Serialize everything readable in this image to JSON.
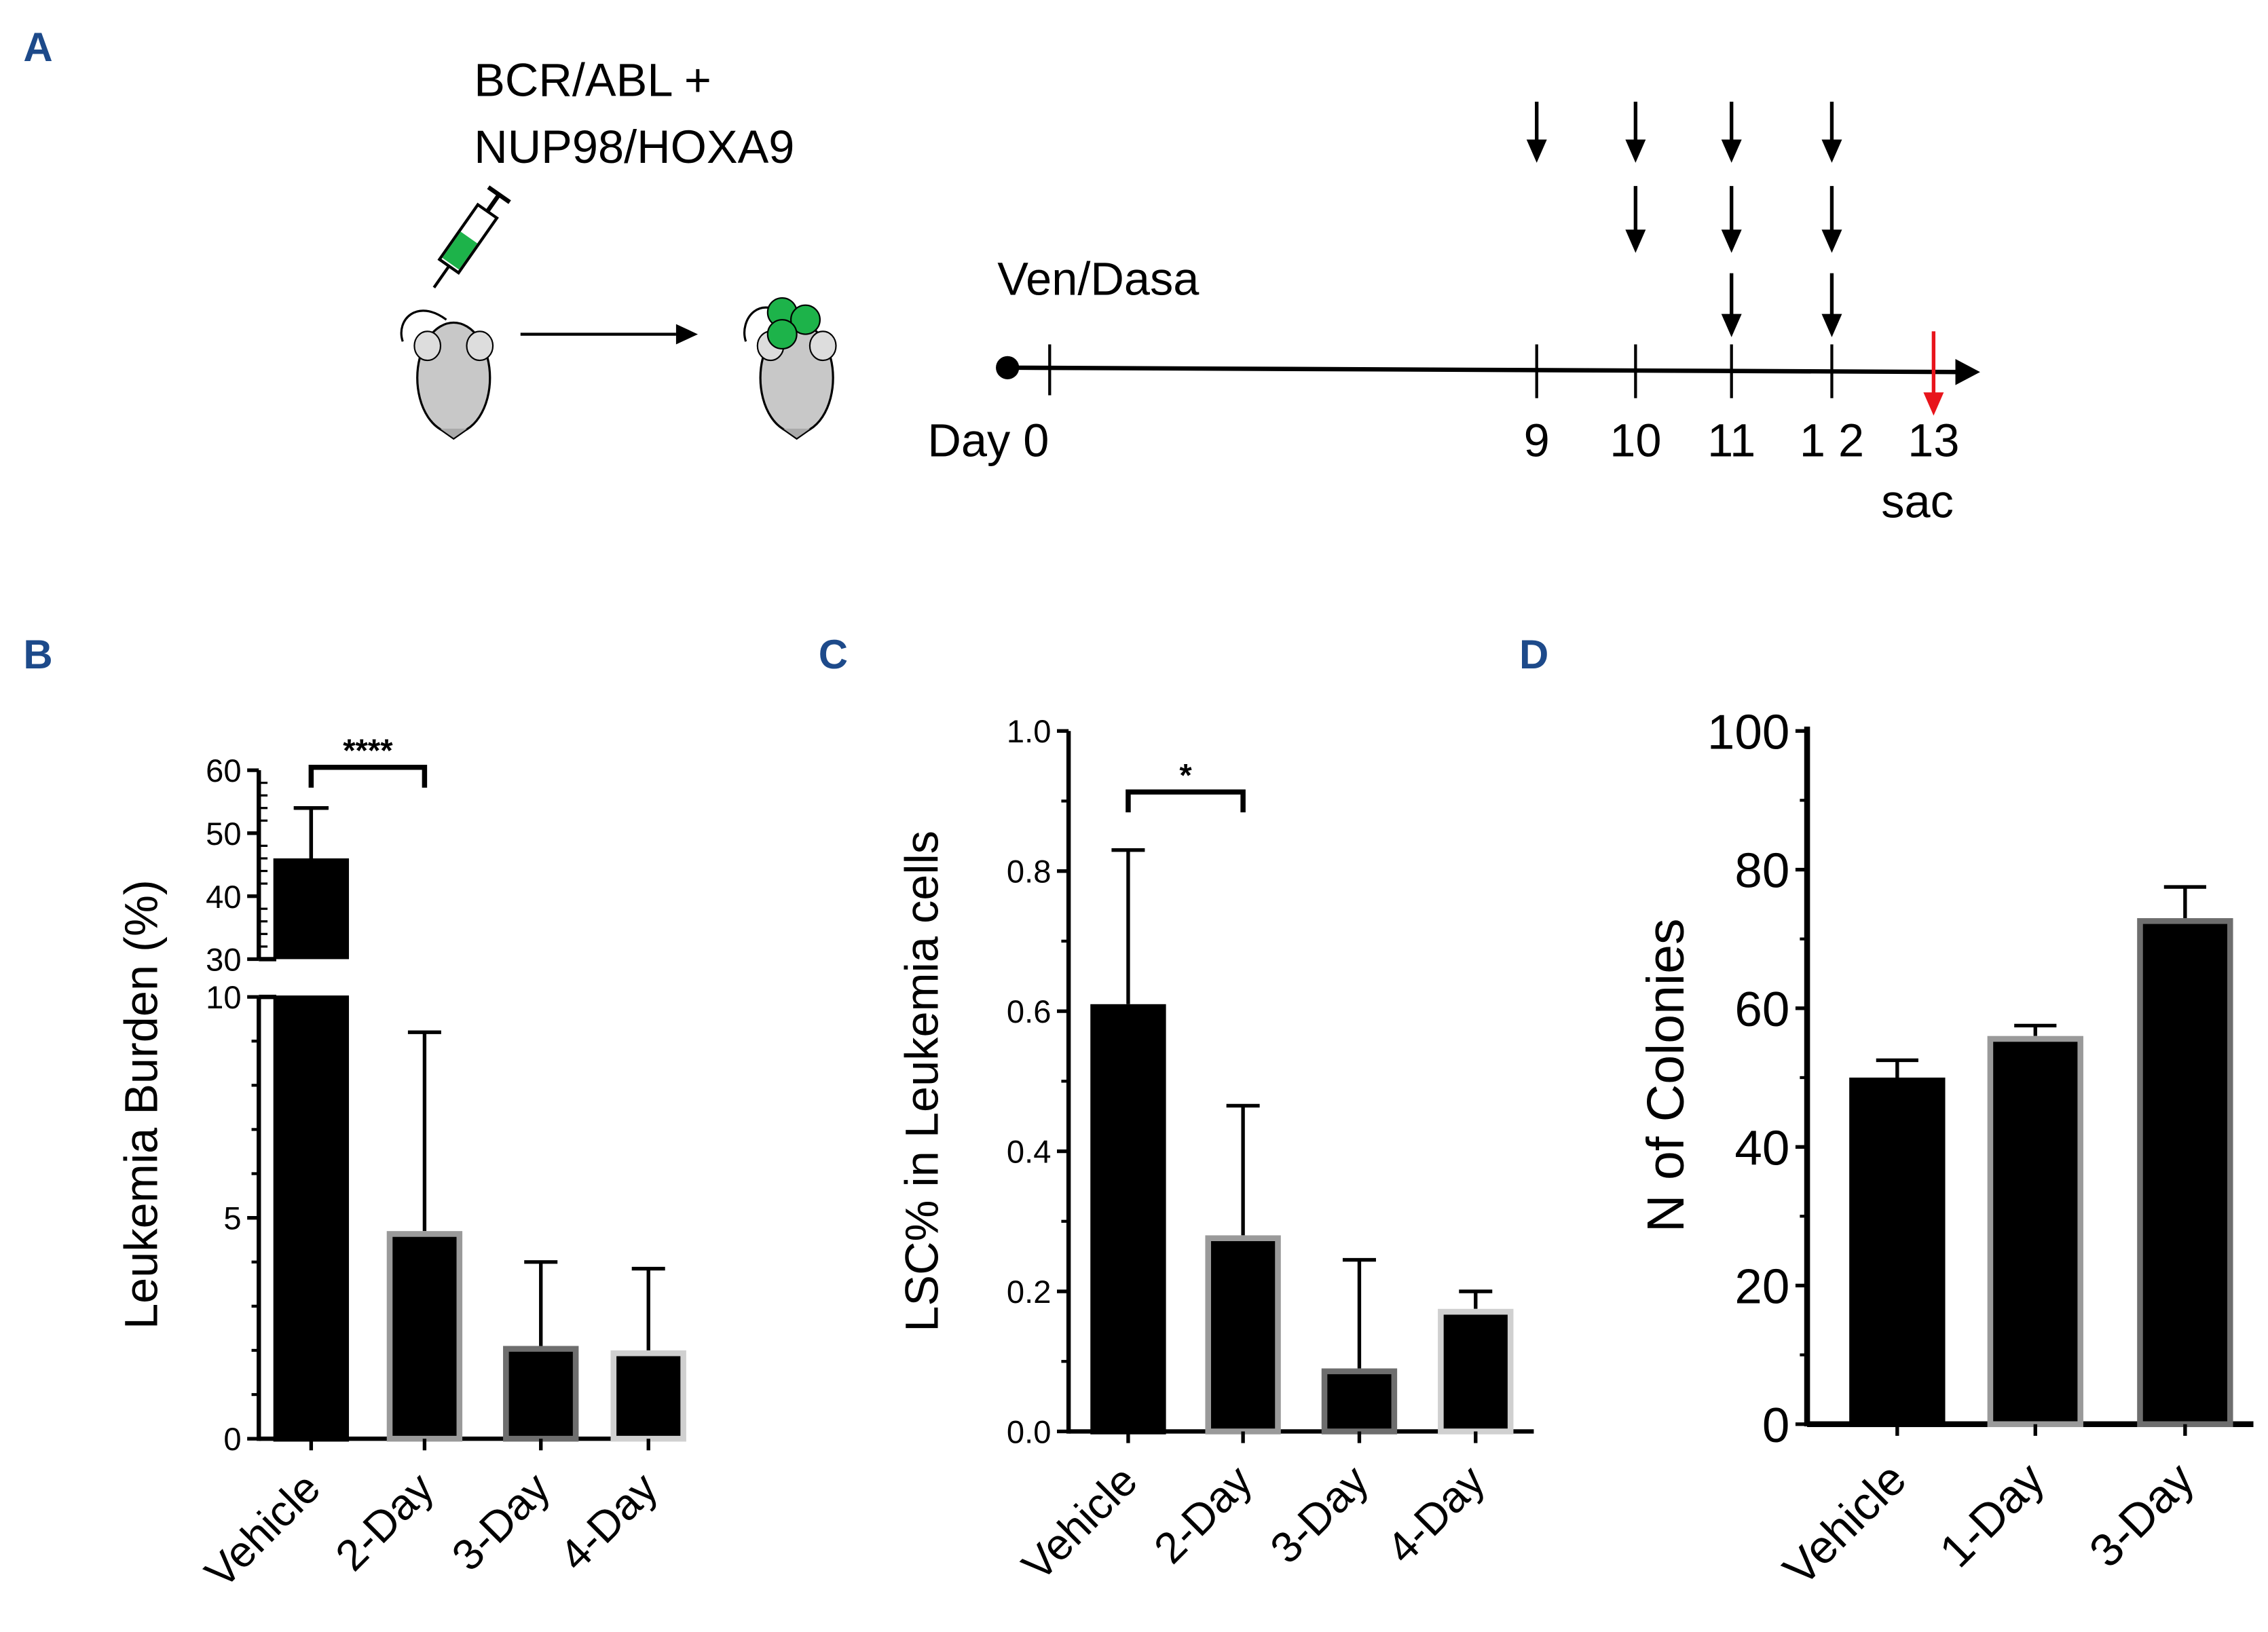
{
  "panel_a": {
    "label": "A",
    "construct_line1": "BCR/ABL +",
    "construct_line2": "NUP98/HOXA9",
    "treatment": "Ven/Dasa",
    "day_label": "Day 0",
    "days": [
      "9",
      "10",
      "11",
      "1 2",
      "13"
    ],
    "sac_label": "sac",
    "doses_per_day": [
      1,
      2,
      3,
      3
    ],
    "sac_color": "#e8141b",
    "cell_color": "#1db34a"
  },
  "chart_data": [
    {
      "panel": "B",
      "type": "bar",
      "ylabel": "Leukemia Burden (%)",
      "categories": [
        "Vehicle",
        "2-Day",
        "3-Day",
        "4-Day"
      ],
      "values": [
        46,
        4.7,
        2.1,
        2.0
      ],
      "error_upper": [
        54,
        9.2,
        4.0,
        3.85
      ],
      "border_colors": [
        "#000000",
        "#9a9a9a",
        "#6e6e6e",
        "#d0d0d0"
      ],
      "ylim_lower": [
        0,
        10
      ],
      "ylim_upper": [
        30,
        60
      ],
      "yticks_lower": [
        "0",
        "5",
        "10"
      ],
      "yticks_upper": [
        "30",
        "40",
        "50",
        "60"
      ],
      "significance": "****",
      "significance_pair": [
        "Vehicle",
        "2-Day"
      ]
    },
    {
      "panel": "C",
      "type": "bar",
      "ylabel": "LSC% in Leukemia cells",
      "categories": [
        "Vehicle",
        "2-Day",
        "3-Day",
        "4-Day"
      ],
      "values": [
        0.61,
        0.28,
        0.09,
        0.175
      ],
      "error_upper": [
        0.83,
        0.465,
        0.245,
        0.2
      ],
      "border_colors": [
        "#000000",
        "#9a9a9a",
        "#6e6e6e",
        "#d0d0d0"
      ],
      "ylim": [
        0,
        1.0
      ],
      "yticks": [
        "0.0",
        "0.2",
        "0.4",
        "0.6",
        "0.8",
        "1.0"
      ],
      "significance": "*",
      "significance_pair": [
        "Vehicle",
        "2-Day"
      ]
    },
    {
      "panel": "D",
      "type": "bar",
      "ylabel": "N  of Colonies",
      "categories": [
        "Vehicle",
        "1-Day",
        "3-Day"
      ],
      "values": [
        50,
        56,
        73
      ],
      "error_upper": [
        52.5,
        57.5,
        77.5
      ],
      "border_colors": [
        "#000000",
        "#9a9a9a",
        "#6e6e6e"
      ],
      "ylim": [
        0,
        100
      ],
      "yticks": [
        "0",
        "20",
        "40",
        "60",
        "80",
        "100"
      ]
    }
  ]
}
